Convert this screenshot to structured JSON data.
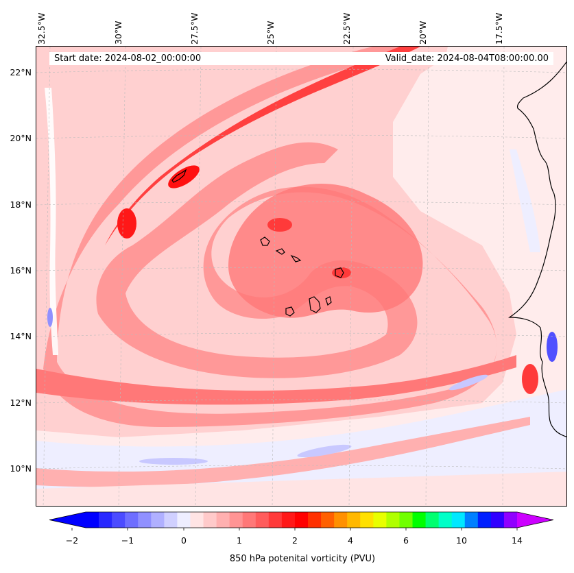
{
  "header": {
    "start_date": "Start date: 2024-08-02_00:00:00",
    "valid_date": "Valid_date: 2024-08-04T08:00:00.00"
  },
  "longitude_labels": [
    "32.5°W",
    "30°W",
    "27.5°W",
    "25°W",
    "22.5°W",
    "20°W",
    "17.5°W"
  ],
  "latitude_labels": [
    "22°N",
    "20°N",
    "18°N",
    "16°N",
    "14°N",
    "12°N",
    "10°N"
  ],
  "colorbar": {
    "label": "850 hPa potenital vorticity (PVU)",
    "tick_labels": [
      "−2",
      "−1",
      "0",
      "1",
      "2",
      "4",
      "6",
      "10",
      "14"
    ],
    "colors": [
      "#0000ff",
      "#2828ff",
      "#4b4bff",
      "#6e6eff",
      "#9090ff",
      "#b0b0ff",
      "#d0d0ff",
      "#eeeeff",
      "#ffe4e4",
      "#ffcaca",
      "#ffb0b0",
      "#ff9494",
      "#ff7878",
      "#ff5c5c",
      "#ff3a3a",
      "#ff1818",
      "#ff0000",
      "#ff3000",
      "#ff6000",
      "#ff9000",
      "#ffb800",
      "#ffe000",
      "#e8ff00",
      "#b0ff00",
      "#70ff00",
      "#00ff00",
      "#00ff70",
      "#00ffc8",
      "#00e8ff",
      "#0080ff",
      "#0020ff",
      "#3000ff",
      "#9000ff"
    ],
    "extend_min_color": "#0000ff",
    "extend_max_color": "#cc00ff"
  },
  "colors": {
    "background_field": "#ffecec",
    "weak_positive": "#ffd0d0",
    "moderate_positive": "#ff9898",
    "strong_positive": "#ff4040",
    "peak_positive": "#ff1010",
    "weak_negative": "#eeeeff",
    "moderate_negative": "#c8c8ff",
    "strong_negative": "#5050ff",
    "coastline": "#000000"
  }
}
